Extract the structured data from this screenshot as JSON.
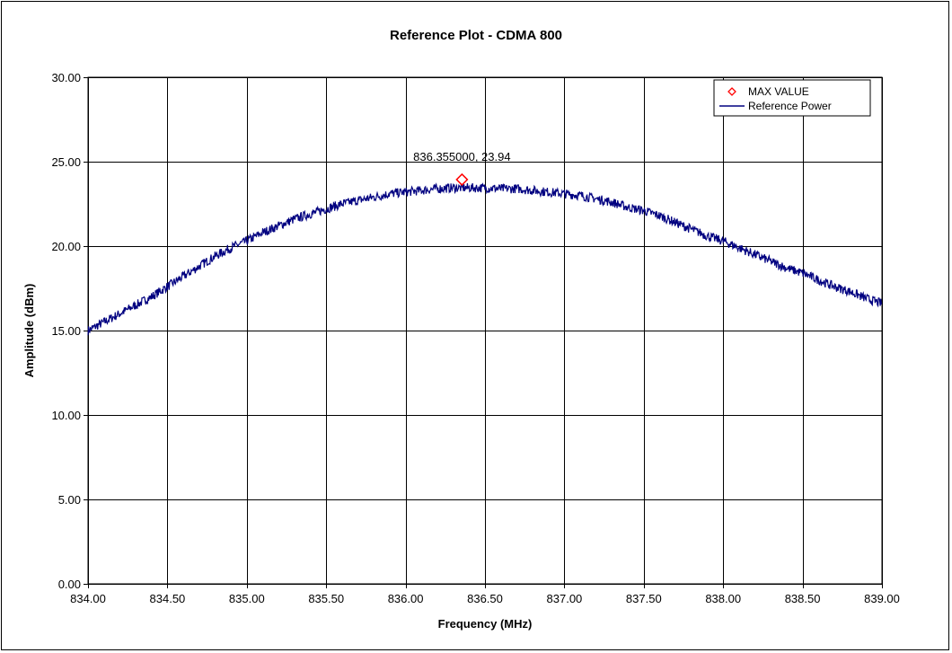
{
  "chart_data": {
    "type": "line",
    "title": "Reference Plot - CDMA 800",
    "xlabel": "Frequency (MHz)",
    "ylabel": "Amplitude (dBm)",
    "xlim": [
      834.0,
      839.0
    ],
    "ylim": [
      0.0,
      30.0
    ],
    "x_ticks": [
      "834.00",
      "834.50",
      "835.00",
      "835.50",
      "836.00",
      "836.50",
      "837.00",
      "837.50",
      "838.00",
      "838.50",
      "839.00"
    ],
    "y_ticks": [
      "0.00",
      "5.00",
      "10.00",
      "15.00",
      "20.00",
      "25.00",
      "30.00"
    ],
    "grid": true,
    "legend_position": "top-right",
    "legend": [
      {
        "label": "MAX VALUE",
        "marker": "diamond",
        "color": "#ff0000"
      },
      {
        "label": "Reference Power",
        "marker": "line",
        "color": "#000080"
      }
    ],
    "series": [
      {
        "name": "Reference Power",
        "color": "#000080",
        "x": [
          834.0,
          834.1,
          834.2,
          834.3,
          834.4,
          834.5,
          834.6,
          834.7,
          834.8,
          834.9,
          835.0,
          835.1,
          835.2,
          835.3,
          835.4,
          835.5,
          835.6,
          835.7,
          835.8,
          835.9,
          836.0,
          836.1,
          836.2,
          836.3,
          836.4,
          836.5,
          836.6,
          836.7,
          836.8,
          836.9,
          837.0,
          837.1,
          837.2,
          837.3,
          837.4,
          837.5,
          837.6,
          837.7,
          837.8,
          837.9,
          838.0,
          838.1,
          838.2,
          838.3,
          838.4,
          838.5,
          838.6,
          838.7,
          838.8,
          838.9,
          839.0
        ],
        "y": [
          15.0,
          15.5,
          16.0,
          16.5,
          17.0,
          17.6,
          18.2,
          18.8,
          19.4,
          19.9,
          20.3,
          20.8,
          21.2,
          21.6,
          21.9,
          22.2,
          22.5,
          22.7,
          22.9,
          23.1,
          23.2,
          23.3,
          23.4,
          23.45,
          23.45,
          23.45,
          23.4,
          23.4,
          23.3,
          23.2,
          23.1,
          23.0,
          22.8,
          22.6,
          22.3,
          22.1,
          21.8,
          21.4,
          21.0,
          20.6,
          20.3,
          19.9,
          19.5,
          19.1,
          18.7,
          18.4,
          18.0,
          17.6,
          17.3,
          16.9,
          16.6
        ]
      },
      {
        "name": "MAX VALUE",
        "color": "#ff0000",
        "marker": "diamond",
        "x": [
          836.355
        ],
        "y": [
          23.94
        ],
        "label": "836.355000, 23.94"
      }
    ]
  }
}
